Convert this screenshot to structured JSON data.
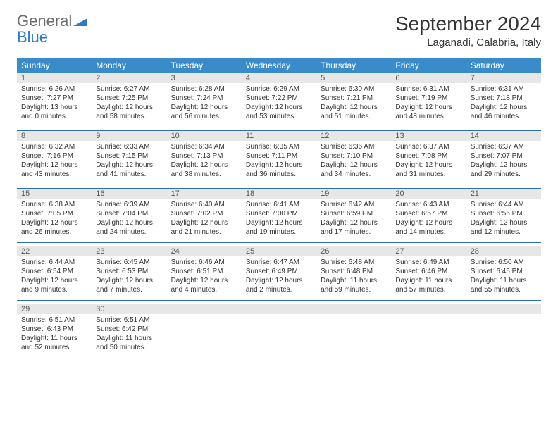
{
  "logo": {
    "word1": "General",
    "word2": "Blue"
  },
  "title": "September 2024",
  "location": "Laganadi, Calabria, Italy",
  "day_headers": [
    "Sunday",
    "Monday",
    "Tuesday",
    "Wednesday",
    "Thursday",
    "Friday",
    "Saturday"
  ],
  "header_bg": "#3a8bca",
  "header_fg": "#ffffff",
  "numrow_bg": "#e7e7e7",
  "rule_color": "#2f6ea8",
  "font_family": "Arial",
  "title_fontsize": 28,
  "location_fontsize": 15,
  "dayhead_fontsize": 12,
  "daynum_fontsize": 11,
  "body_fontsize": 10,
  "weeks": [
    {
      "days": [
        {
          "n": "1",
          "sunrise": "Sunrise: 6:26 AM",
          "sunset": "Sunset: 7:27 PM",
          "daylight": "Daylight: 13 hours and 0 minutes."
        },
        {
          "n": "2",
          "sunrise": "Sunrise: 6:27 AM",
          "sunset": "Sunset: 7:25 PM",
          "daylight": "Daylight: 12 hours and 58 minutes."
        },
        {
          "n": "3",
          "sunrise": "Sunrise: 6:28 AM",
          "sunset": "Sunset: 7:24 PM",
          "daylight": "Daylight: 12 hours and 56 minutes."
        },
        {
          "n": "4",
          "sunrise": "Sunrise: 6:29 AM",
          "sunset": "Sunset: 7:22 PM",
          "daylight": "Daylight: 12 hours and 53 minutes."
        },
        {
          "n": "5",
          "sunrise": "Sunrise: 6:30 AM",
          "sunset": "Sunset: 7:21 PM",
          "daylight": "Daylight: 12 hours and 51 minutes."
        },
        {
          "n": "6",
          "sunrise": "Sunrise: 6:31 AM",
          "sunset": "Sunset: 7:19 PM",
          "daylight": "Daylight: 12 hours and 48 minutes."
        },
        {
          "n": "7",
          "sunrise": "Sunrise: 6:31 AM",
          "sunset": "Sunset: 7:18 PM",
          "daylight": "Daylight: 12 hours and 46 minutes."
        }
      ]
    },
    {
      "days": [
        {
          "n": "8",
          "sunrise": "Sunrise: 6:32 AM",
          "sunset": "Sunset: 7:16 PM",
          "daylight": "Daylight: 12 hours and 43 minutes."
        },
        {
          "n": "9",
          "sunrise": "Sunrise: 6:33 AM",
          "sunset": "Sunset: 7:15 PM",
          "daylight": "Daylight: 12 hours and 41 minutes."
        },
        {
          "n": "10",
          "sunrise": "Sunrise: 6:34 AM",
          "sunset": "Sunset: 7:13 PM",
          "daylight": "Daylight: 12 hours and 38 minutes."
        },
        {
          "n": "11",
          "sunrise": "Sunrise: 6:35 AM",
          "sunset": "Sunset: 7:11 PM",
          "daylight": "Daylight: 12 hours and 36 minutes."
        },
        {
          "n": "12",
          "sunrise": "Sunrise: 6:36 AM",
          "sunset": "Sunset: 7:10 PM",
          "daylight": "Daylight: 12 hours and 34 minutes."
        },
        {
          "n": "13",
          "sunrise": "Sunrise: 6:37 AM",
          "sunset": "Sunset: 7:08 PM",
          "daylight": "Daylight: 12 hours and 31 minutes."
        },
        {
          "n": "14",
          "sunrise": "Sunrise: 6:37 AM",
          "sunset": "Sunset: 7:07 PM",
          "daylight": "Daylight: 12 hours and 29 minutes."
        }
      ]
    },
    {
      "days": [
        {
          "n": "15",
          "sunrise": "Sunrise: 6:38 AM",
          "sunset": "Sunset: 7:05 PM",
          "daylight": "Daylight: 12 hours and 26 minutes."
        },
        {
          "n": "16",
          "sunrise": "Sunrise: 6:39 AM",
          "sunset": "Sunset: 7:04 PM",
          "daylight": "Daylight: 12 hours and 24 minutes."
        },
        {
          "n": "17",
          "sunrise": "Sunrise: 6:40 AM",
          "sunset": "Sunset: 7:02 PM",
          "daylight": "Daylight: 12 hours and 21 minutes."
        },
        {
          "n": "18",
          "sunrise": "Sunrise: 6:41 AM",
          "sunset": "Sunset: 7:00 PM",
          "daylight": "Daylight: 12 hours and 19 minutes."
        },
        {
          "n": "19",
          "sunrise": "Sunrise: 6:42 AM",
          "sunset": "Sunset: 6:59 PM",
          "daylight": "Daylight: 12 hours and 17 minutes."
        },
        {
          "n": "20",
          "sunrise": "Sunrise: 6:43 AM",
          "sunset": "Sunset: 6:57 PM",
          "daylight": "Daylight: 12 hours and 14 minutes."
        },
        {
          "n": "21",
          "sunrise": "Sunrise: 6:44 AM",
          "sunset": "Sunset: 6:56 PM",
          "daylight": "Daylight: 12 hours and 12 minutes."
        }
      ]
    },
    {
      "days": [
        {
          "n": "22",
          "sunrise": "Sunrise: 6:44 AM",
          "sunset": "Sunset: 6:54 PM",
          "daylight": "Daylight: 12 hours and 9 minutes."
        },
        {
          "n": "23",
          "sunrise": "Sunrise: 6:45 AM",
          "sunset": "Sunset: 6:53 PM",
          "daylight": "Daylight: 12 hours and 7 minutes."
        },
        {
          "n": "24",
          "sunrise": "Sunrise: 6:46 AM",
          "sunset": "Sunset: 6:51 PM",
          "daylight": "Daylight: 12 hours and 4 minutes."
        },
        {
          "n": "25",
          "sunrise": "Sunrise: 6:47 AM",
          "sunset": "Sunset: 6:49 PM",
          "daylight": "Daylight: 12 hours and 2 minutes."
        },
        {
          "n": "26",
          "sunrise": "Sunrise: 6:48 AM",
          "sunset": "Sunset: 6:48 PM",
          "daylight": "Daylight: 11 hours and 59 minutes."
        },
        {
          "n": "27",
          "sunrise": "Sunrise: 6:49 AM",
          "sunset": "Sunset: 6:46 PM",
          "daylight": "Daylight: 11 hours and 57 minutes."
        },
        {
          "n": "28",
          "sunrise": "Sunrise: 6:50 AM",
          "sunset": "Sunset: 6:45 PM",
          "daylight": "Daylight: 11 hours and 55 minutes."
        }
      ]
    },
    {
      "days": [
        {
          "n": "29",
          "sunrise": "Sunrise: 6:51 AM",
          "sunset": "Sunset: 6:43 PM",
          "daylight": "Daylight: 11 hours and 52 minutes."
        },
        {
          "n": "30",
          "sunrise": "Sunrise: 6:51 AM",
          "sunset": "Sunset: 6:42 PM",
          "daylight": "Daylight: 11 hours and 50 minutes."
        },
        {
          "n": "",
          "sunrise": "",
          "sunset": "",
          "daylight": ""
        },
        {
          "n": "",
          "sunrise": "",
          "sunset": "",
          "daylight": ""
        },
        {
          "n": "",
          "sunrise": "",
          "sunset": "",
          "daylight": ""
        },
        {
          "n": "",
          "sunrise": "",
          "sunset": "",
          "daylight": ""
        },
        {
          "n": "",
          "sunrise": "",
          "sunset": "",
          "daylight": ""
        }
      ]
    }
  ]
}
